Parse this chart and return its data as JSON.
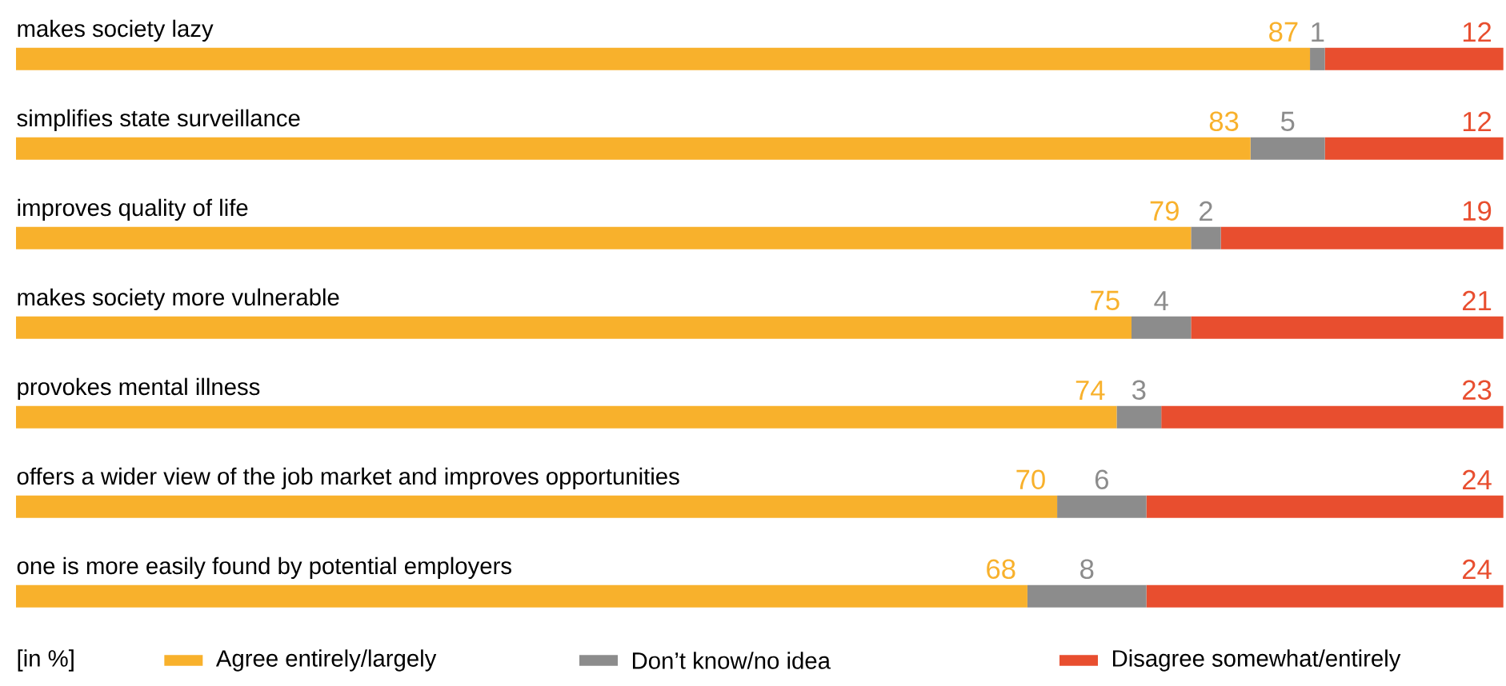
{
  "chart_data": {
    "type": "bar",
    "orientation": "horizontal",
    "stacked": true,
    "data_labels": true,
    "legend": "bottom",
    "legend_title": "[in %]",
    "categories": [
      "makes society lazy",
      "simplifies state surveillance",
      "improves quality of life",
      "makes society more vulnerable",
      "provokes mental illness",
      "offers a wider view of the job market and improves opportunities",
      "one is more easily found by potential employers"
    ],
    "series": [
      {
        "name": "Agree entirely/largely",
        "color": "#f8b12c",
        "values": [
          87,
          83,
          79,
          75,
          74,
          70,
          68
        ]
      },
      {
        "name": "Don’t know/no idea",
        "color": "#8c8c8c",
        "values": [
          1,
          5,
          2,
          4,
          3,
          6,
          8
        ]
      },
      {
        "name": "Disagree somewhat/entirely",
        "color": "#e84e2f",
        "values": [
          12,
          12,
          19,
          21,
          23,
          24,
          24
        ]
      }
    ]
  }
}
